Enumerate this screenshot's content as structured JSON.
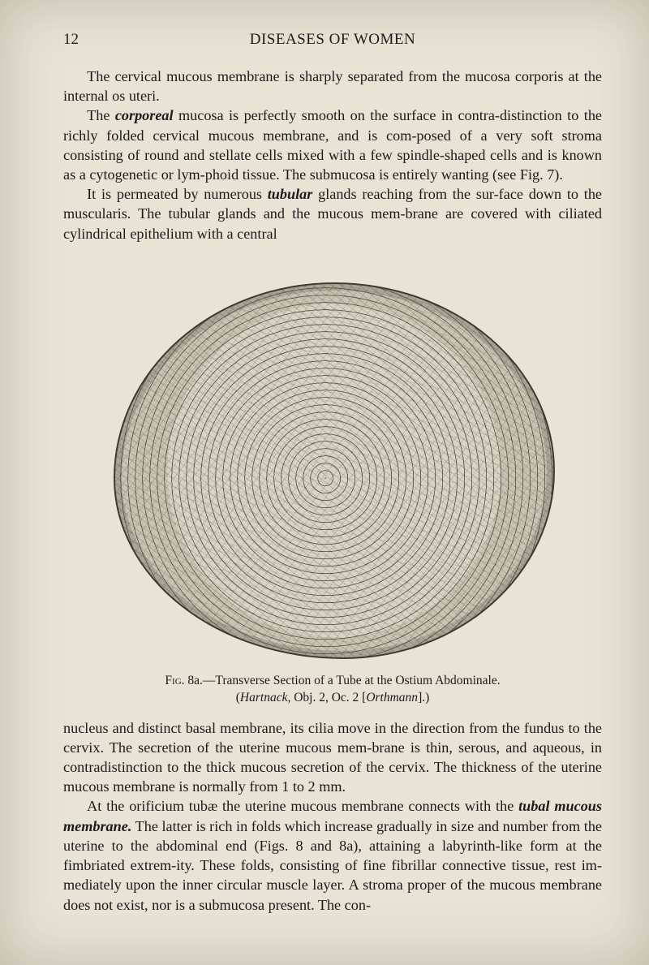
{
  "page": {
    "number": "12",
    "running_head": "DISEASES OF WOMEN"
  },
  "paragraphs": {
    "p1": "The cervical mucous membrane is sharply separated from the mucosa corporis at the internal os uteri.",
    "p2a": "The ",
    "p2_bold": "corporeal",
    "p2b": " mucosa is perfectly smooth on the surface in contra-distinction to the richly folded cervical mucous membrane, and is com-posed of a very soft stroma consisting of round and stellate cells mixed with a few spindle-shaped cells and is known as a cytogenetic or lym-phoid tissue. The submucosa is entirely wanting (see Fig. 7).",
    "p3a": "It is permeated by numerous ",
    "p3_bold": "tubular",
    "p3b": " glands reaching from the sur-face down to the muscularis. The tubular glands and the mucous mem-brane are covered with ciliated cylindrical epithelium with a central",
    "p4": "nucleus and distinct basal membrane, its cilia move in the direction from the fundus to the cervix. The secretion of the uterine mucous mem-brane is thin, serous, and aqueous, in contradistinction to the thick mucous secretion of the cervix. The thickness of the uterine mucous membrane is normally from 1 to 2 mm.",
    "p5a": "At the orificium tubæ the uterine mucous membrane connects with the ",
    "p5_bold": "tubal mucous membrane.",
    "p5b": " The latter is rich in folds which increase gradually in size and number from the uterine to the abdominal end (Figs. 8 and 8a), attaining a labyrinth-like form at the fimbriated extrem-ity. These folds, consisting of fine fibrillar connective tissue, rest im-mediately upon the inner circular muscle layer. A stroma proper of the mucous membrane does not exist, nor is a submucosa present. The con-"
  },
  "figure": {
    "label_sc": "Fig.",
    "label_num": " 8a.—Transverse Section of a Tube at the Ostium Abdominale.",
    "credit_a": "(",
    "credit_ital1": "Hartnack,",
    "credit_mid": " Obj. 2, Oc. 2 [",
    "credit_ital2": "Orthmann",
    "credit_b": "].)"
  }
}
